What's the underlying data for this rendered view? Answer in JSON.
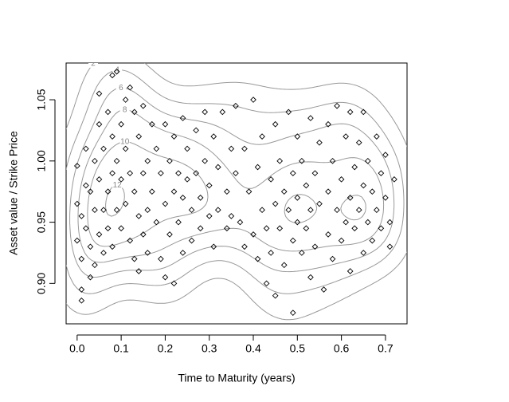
{
  "chart_data": {
    "type": "scatter",
    "x_label": "Time to Maturity (years)",
    "y_label": "Asset value / Strike Price",
    "xlim": [
      -0.025,
      0.749
    ],
    "ylim": [
      0.867,
      1.08
    ],
    "xticks": [
      {
        "value": 0,
        "label": "0.0"
      },
      0.1,
      0.2,
      0.3,
      0.4,
      0.5,
      0.6,
      0.7
    ],
    "yticks": [
      {
        "value": 0.9,
        "label": "0.90"
      },
      0.95,
      {
        "value": 1,
        "label": "1.00"
      },
      1.05
    ],
    "contour_levels": [
      2,
      4,
      6,
      8,
      10,
      12,
      14,
      16,
      18
    ],
    "contour_color": "#999999",
    "point_color": "#000000",
    "x": [
      0.0,
      0.0,
      0.0,
      0.01,
      0.01,
      0.01,
      0.01,
      0.02,
      0.02,
      0.02,
      0.03,
      0.03,
      0.03,
      0.04,
      0.04,
      0.04,
      0.05,
      0.05,
      0.05,
      0.05,
      0.06,
      0.06,
      0.06,
      0.07,
      0.07,
      0.07,
      0.08,
      0.08,
      0.08,
      0.08,
      0.09,
      0.09,
      0.09,
      0.1,
      0.1,
      0.1,
      0.11,
      0.11,
      0.11,
      0.12,
      0.12,
      0.12,
      0.13,
      0.13,
      0.13,
      0.14,
      0.14,
      0.14,
      0.15,
      0.15,
      0.15,
      0.16,
      0.16,
      0.16,
      0.17,
      0.17,
      0.18,
      0.18,
      0.19,
      0.19,
      0.2,
      0.2,
      0.2,
      0.21,
      0.21,
      0.22,
      0.22,
      0.22,
      0.23,
      0.23,
      0.24,
      0.24,
      0.24,
      0.25,
      0.25,
      0.26,
      0.26,
      0.27,
      0.27,
      0.28,
      0.28,
      0.29,
      0.29,
      0.3,
      0.3,
      0.31,
      0.31,
      0.32,
      0.32,
      0.33,
      0.34,
      0.34,
      0.35,
      0.35,
      0.36,
      0.36,
      0.37,
      0.38,
      0.38,
      0.39,
      0.4,
      0.4,
      0.41,
      0.41,
      0.42,
      0.42,
      0.43,
      0.43,
      0.44,
      0.44,
      0.45,
      0.45,
      0.45,
      0.46,
      0.46,
      0.47,
      0.47,
      0.48,
      0.48,
      0.49,
      0.49,
      0.49,
      0.5,
      0.5,
      0.5,
      0.51,
      0.51,
      0.52,
      0.52,
      0.53,
      0.53,
      0.53,
      0.54,
      0.54,
      0.55,
      0.55,
      0.56,
      0.57,
      0.57,
      0.57,
      0.58,
      0.58,
      0.59,
      0.59,
      0.6,
      0.6,
      0.61,
      0.61,
      0.62,
      0.62,
      0.62,
      0.63,
      0.63,
      0.64,
      0.64,
      0.65,
      0.65,
      0.65,
      0.66,
      0.66,
      0.67,
      0.67,
      0.68,
      0.68,
      0.69,
      0.69,
      0.7,
      0.7,
      0.71,
      0.71,
      0.72
    ],
    "values": [
      0.996,
      0.965,
      0.935,
      0.955,
      0.92,
      0.895,
      0.886,
      0.98,
      1.01,
      0.945,
      0.975,
      0.93,
      0.905,
      1.0,
      0.96,
      0.915,
      1.055,
      1.03,
      0.985,
      0.94,
      1.01,
      0.96,
      0.925,
      1.04,
      0.975,
      0.945,
      1.07,
      1.02,
      0.99,
      0.93,
      1.073,
      1.0,
      0.96,
      1.03,
      0.985,
      0.945,
      1.05,
      1.01,
      0.965,
      1.06,
      0.99,
      0.935,
      1.04,
      0.975,
      0.92,
      1.02,
      0.955,
      0.91,
      1.045,
      0.99,
      0.94,
      1.0,
      0.96,
      0.925,
      1.03,
      0.975,
      1.01,
      0.95,
      0.99,
      0.92,
      1.03,
      0.965,
      0.905,
      1.0,
      0.94,
      1.02,
      0.975,
      0.9,
      0.99,
      0.95,
      1.035,
      0.97,
      0.925,
      1.01,
      0.985,
      0.96,
      0.935,
      1.025,
      0.99,
      0.97,
      0.945,
      1.04,
      1.0,
      0.98,
      0.955,
      1.02,
      0.93,
      0.995,
      0.96,
      1.04,
      0.975,
      0.945,
      1.01,
      0.955,
      1.045,
      0.99,
      0.95,
      1.01,
      0.93,
      0.975,
      1.05,
      0.94,
      0.995,
      0.92,
      1.02,
      0.96,
      0.945,
      0.9,
      0.985,
      0.925,
      1.03,
      0.965,
      0.89,
      1.0,
      0.945,
      0.975,
      0.915,
      1.04,
      0.96,
      0.99,
      0.935,
      0.876,
      1.02,
      0.97,
      0.95,
      1.0,
      0.925,
      0.98,
      0.945,
      1.035,
      0.96,
      0.905,
      0.99,
      0.93,
      1.015,
      0.965,
      0.895,
      1.03,
      0.975,
      0.94,
      1.0,
      0.92,
      1.045,
      0.96,
      0.985,
      0.935,
      1.02,
      0.95,
      1.04,
      0.97,
      0.91,
      0.995,
      0.945,
      1.015,
      0.96,
      1.04,
      0.98,
      0.925,
      1.0,
      0.95,
      0.975,
      0.935,
      1.02,
      0.96,
      0.99,
      0.945,
      1.005,
      0.97,
      0.95,
      0.93,
      0.985
    ]
  }
}
